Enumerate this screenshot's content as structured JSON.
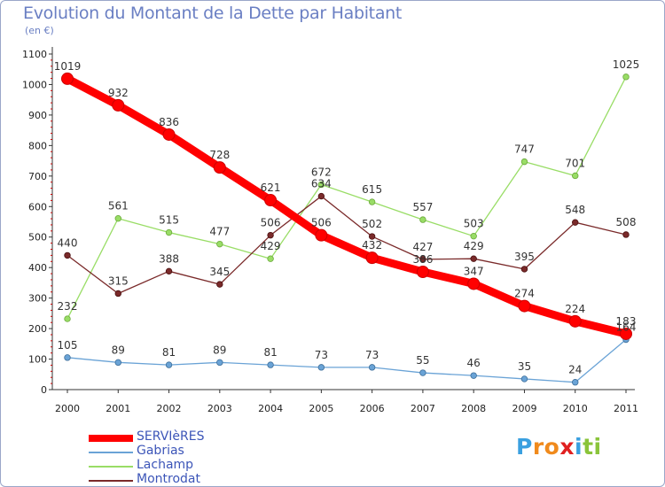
{
  "header": {
    "title": "Evolution du Montant de la Dette par Habitant",
    "subtitle": "(en €)"
  },
  "chart_data": {
    "type": "line",
    "title": "Evolution du Montant de la Dette par Habitant",
    "subtitle": "(en €)",
    "xlabel": "",
    "ylabel": "",
    "categories": [
      "2000",
      "2001",
      "2002",
      "2003",
      "2004",
      "2005",
      "2006",
      "2007",
      "2008",
      "2009",
      "2010",
      "2011"
    ],
    "ylim": [
      0,
      1100
    ],
    "yticks": [
      0,
      100,
      200,
      300,
      400,
      500,
      600,
      700,
      800,
      900,
      1000,
      1100
    ],
    "grid": false,
    "legend_position": "bottom-left",
    "series": [
      {
        "name": "SERVIèRES",
        "color": "#ff0000",
        "values": [
          1019,
          932,
          836,
          728,
          621,
          506,
          432,
          386,
          347,
          274,
          224,
          183
        ]
      },
      {
        "name": "Gabrias",
        "color": "#6aa3d6",
        "values": [
          105,
          89,
          81,
          89,
          81,
          73,
          73,
          55,
          46,
          35,
          24,
          164
        ]
      },
      {
        "name": "Lachamp",
        "color": "#99dd66",
        "values": [
          232,
          561,
          515,
          477,
          429,
          672,
          615,
          557,
          503,
          747,
          701,
          1025
        ]
      },
      {
        "name": "Montrodat",
        "color": "#7a2a2a",
        "values": [
          440,
          315,
          388,
          345,
          506,
          634,
          502,
          427,
          429,
          395,
          548,
          508
        ]
      }
    ]
  },
  "logo": {
    "letters": [
      "P",
      "r",
      "o",
      "x",
      "i",
      "t",
      "i"
    ],
    "colors": [
      "#3aa0e0",
      "#f08a1c",
      "#f08a1c",
      "#e02020",
      "#3aa0e0",
      "#8ac43a",
      "#8ac43a"
    ]
  }
}
